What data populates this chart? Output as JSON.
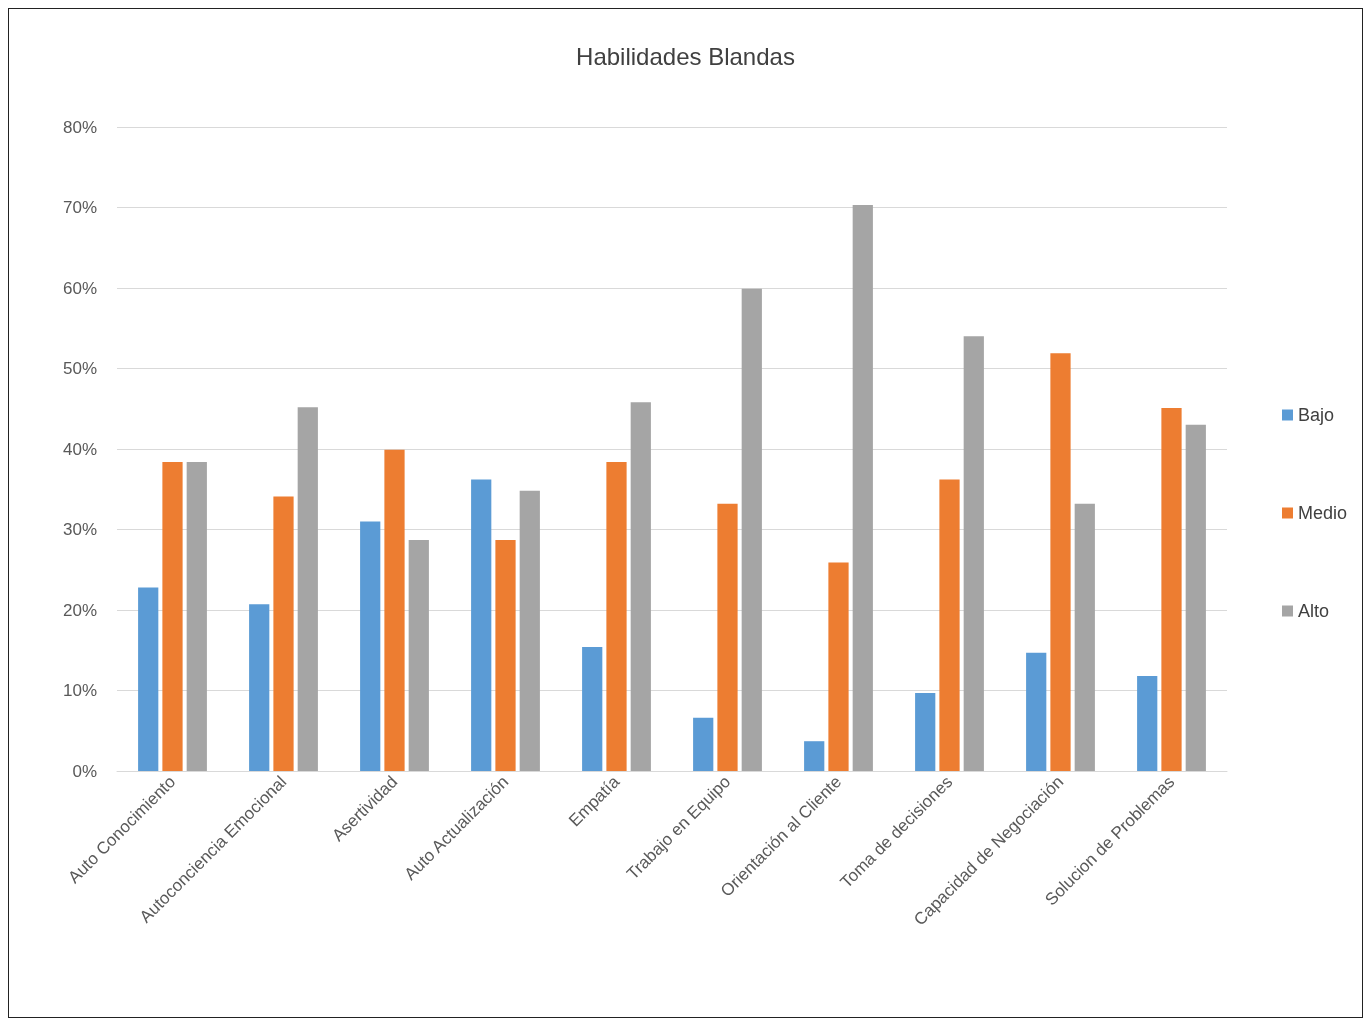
{
  "chart_data": {
    "type": "bar",
    "title": "Habilidades Blandas",
    "categories": [
      "Auto Conocimiento",
      "Autoconciencia Emocional",
      "Asertividad",
      "Auto Actualización",
      "Empatía",
      "Trabajo en Equipo",
      "Orientación al Cliente",
      "Toma de decisiones",
      "Capacidad de Negociación",
      "Solucion de Problemas"
    ],
    "series": [
      {
        "name": "Bajo",
        "color": "#5b9bd5",
        "values": [
          22.8,
          20.7,
          31.0,
          36.2,
          15.4,
          6.6,
          3.7,
          9.7,
          14.7,
          11.8
        ]
      },
      {
        "name": "Medio",
        "color": "#ed7d31",
        "values": [
          38.4,
          34.1,
          39.9,
          28.7,
          38.4,
          33.2,
          25.9,
          36.2,
          51.9,
          45.1
        ]
      },
      {
        "name": "Alto",
        "color": "#a5a5a5",
        "values": [
          38.4,
          45.2,
          28.7,
          34.8,
          45.8,
          59.9,
          70.3,
          54.0,
          33.2,
          43.0
        ]
      }
    ],
    "ylim": [
      0,
      80
    ],
    "yticks": [
      {
        "value": 0,
        "label": "0%"
      },
      {
        "value": 10,
        "label": "10%"
      },
      {
        "value": 20,
        "label": "20%"
      },
      {
        "value": 30,
        "label": "30%"
      },
      {
        "value": 40,
        "label": "40%"
      },
      {
        "value": 50,
        "label": "50%"
      },
      {
        "value": 60,
        "label": "60%"
      },
      {
        "value": 70,
        "label": "70%"
      },
      {
        "value": 80,
        "label": "80%"
      }
    ],
    "grid": "y",
    "legend": "right"
  }
}
